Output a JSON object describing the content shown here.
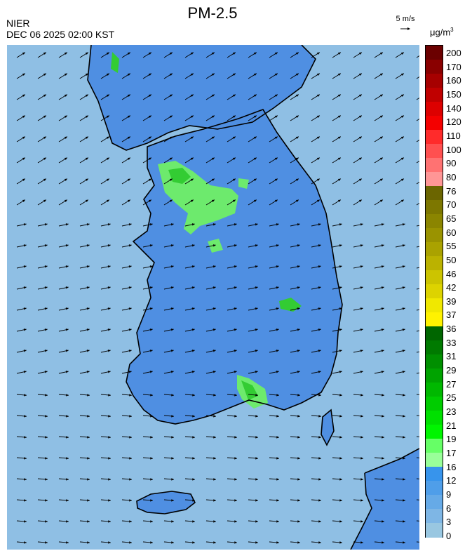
{
  "header": {
    "title": "PM-2.5",
    "agency": "NIER",
    "timestamp": "DEC 06 2025 02:00 KST",
    "wind_reference": "5 m/s",
    "unit_base": "μg/m",
    "unit_exp": "3"
  },
  "legend": {
    "labels": [
      "200",
      "170",
      "160",
      "150",
      "140",
      "120",
      "110",
      "100",
      "90",
      "80",
      "76",
      "70",
      "65",
      "60",
      "55",
      "50",
      "46",
      "42",
      "39",
      "37",
      "36",
      "33",
      "31",
      "29",
      "27",
      "25",
      "23",
      "21",
      "19",
      "17",
      "16",
      "12",
      "9",
      "6",
      "3",
      "0"
    ],
    "colors": [
      "#6b0000",
      "#8a0000",
      "#a60000",
      "#c00000",
      "#dd0000",
      "#f40000",
      "#ff2b2b",
      "#ff5050",
      "#ff7272",
      "#ff9696",
      "#6b6500",
      "#7d7700",
      "#8b8500",
      "#9a9300",
      "#aaa200",
      "#bbb200",
      "#ccc400",
      "#ddd300",
      "#f0e800",
      "#fff200",
      "#006600",
      "#007a00",
      "#008f00",
      "#00a300",
      "#00b800",
      "#00cc00",
      "#00e000",
      "#00f500",
      "#66ff66",
      "#99ff99",
      "#3794ec",
      "#4f9ee9",
      "#66aae7",
      "#7eb6e5",
      "#99c7e1"
    ]
  },
  "map": {
    "colors": {
      "sea": "#8fbfe4",
      "land": "#4f8fe2",
      "land_dark": "#3e82e0",
      "moderate_light": "#6dea6d",
      "moderate": "#33cc33",
      "coast": "#000000",
      "arrow": "#000000"
    }
  }
}
